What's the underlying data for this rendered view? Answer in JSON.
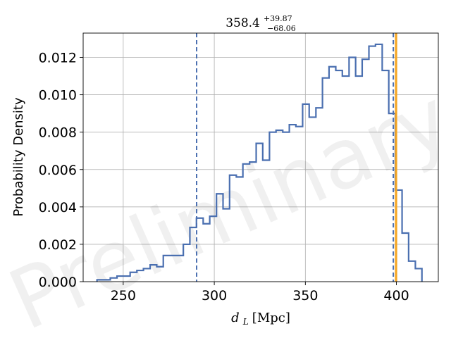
{
  "chart_data": {
    "type": "histogram",
    "title": {
      "value": "358.4",
      "sup": "+39.87",
      "sub": "−68.06"
    },
    "xlabel": {
      "symbol": "d",
      "subscript": "L",
      "unit": "[Mpc]"
    },
    "ylabel": "Probability Density",
    "xlim": [
      228,
      423
    ],
    "ylim": [
      0,
      0.0133
    ],
    "xticks": [
      250,
      300,
      350,
      400
    ],
    "yticks": [
      0.0,
      0.002,
      0.004,
      0.006,
      0.008,
      0.01,
      0.012
    ],
    "ytick_labels": [
      "0.000",
      "0.002",
      "0.004",
      "0.006",
      "0.008",
      "0.010",
      "0.012"
    ],
    "grid": true,
    "watermark": "Preliminary",
    "bin_edges": [
      235.6,
      239.3,
      242.9,
      246.6,
      250.2,
      253.8,
      257.5,
      261.1,
      264.8,
      268.4,
      272.0,
      275.7,
      279.3,
      283.0,
      286.6,
      290.2,
      293.9,
      297.5,
      301.2,
      304.8,
      308.4,
      312.1,
      315.7,
      319.4,
      323.0,
      326.6,
      330.3,
      333.9,
      337.6,
      341.2,
      344.8,
      348.5,
      352.1,
      355.8,
      359.4,
      363.0,
      366.7,
      370.3,
      374.0,
      377.6,
      381.2,
      384.9,
      388.5,
      392.2,
      395.8,
      399.4,
      403.1,
      406.7,
      410.4,
      414.0
    ],
    "densities": [
      0.0001,
      0.0001,
      0.0002,
      0.0003,
      0.0003,
      0.0005,
      0.0006,
      0.0007,
      0.0009,
      0.0008,
      0.0014,
      0.0014,
      0.0014,
      0.002,
      0.0029,
      0.0034,
      0.0031,
      0.0035,
      0.0047,
      0.0039,
      0.0057,
      0.0056,
      0.0063,
      0.0064,
      0.0074,
      0.0065,
      0.008,
      0.0081,
      0.008,
      0.0084,
      0.0083,
      0.0095,
      0.0088,
      0.0093,
      0.0109,
      0.0115,
      0.0113,
      0.011,
      0.012,
      0.011,
      0.0119,
      0.0126,
      0.0127,
      0.0113,
      0.009,
      0.0049,
      0.0026,
      0.0011,
      0.0007
    ],
    "lines": {
      "lower_quantile": 290.3,
      "upper_quantile": 398.3,
      "injected": 399.8
    },
    "colors": {
      "hist": "#4a6fb0",
      "quantile": "#4a6fb0",
      "injected": "#f5a623",
      "grid": "#b0b0b0"
    }
  }
}
